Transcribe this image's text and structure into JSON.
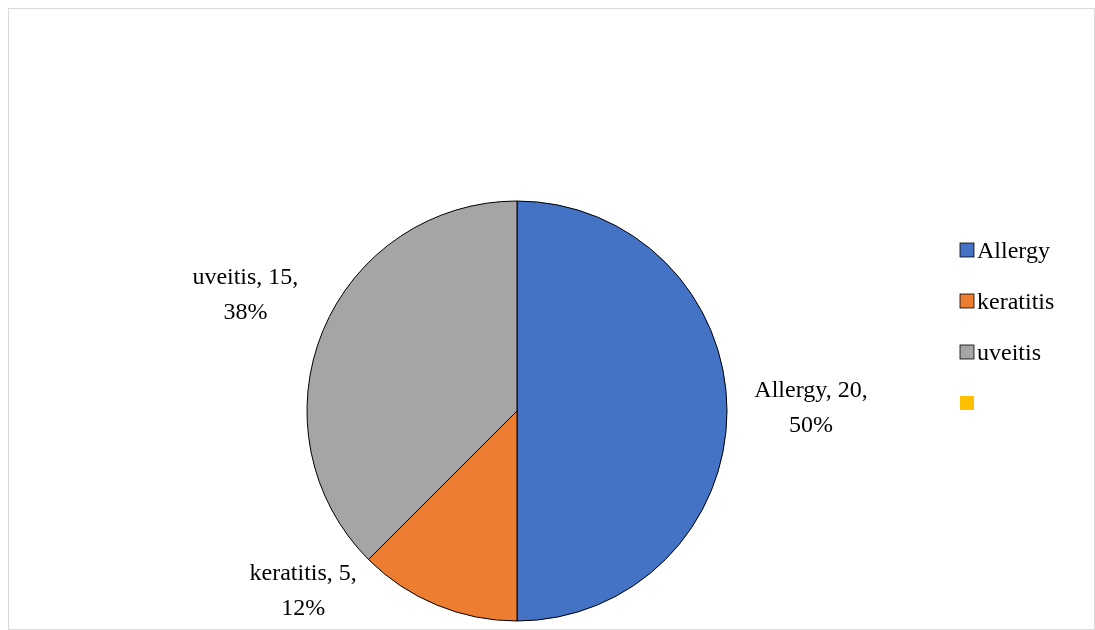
{
  "chart_data": {
    "type": "pie",
    "categories": [
      "Allergy",
      "keratitis",
      "uveitis"
    ],
    "values": [
      20,
      5,
      15
    ],
    "colors": [
      "#4472c4",
      "#ed7d31",
      "#a5a5a5"
    ],
    "value_labels": [
      "Allergy, 20, 50%",
      "keratitis, 5, 12%",
      "uveitis, 15, 38%"
    ],
    "legend": "right"
  }
}
